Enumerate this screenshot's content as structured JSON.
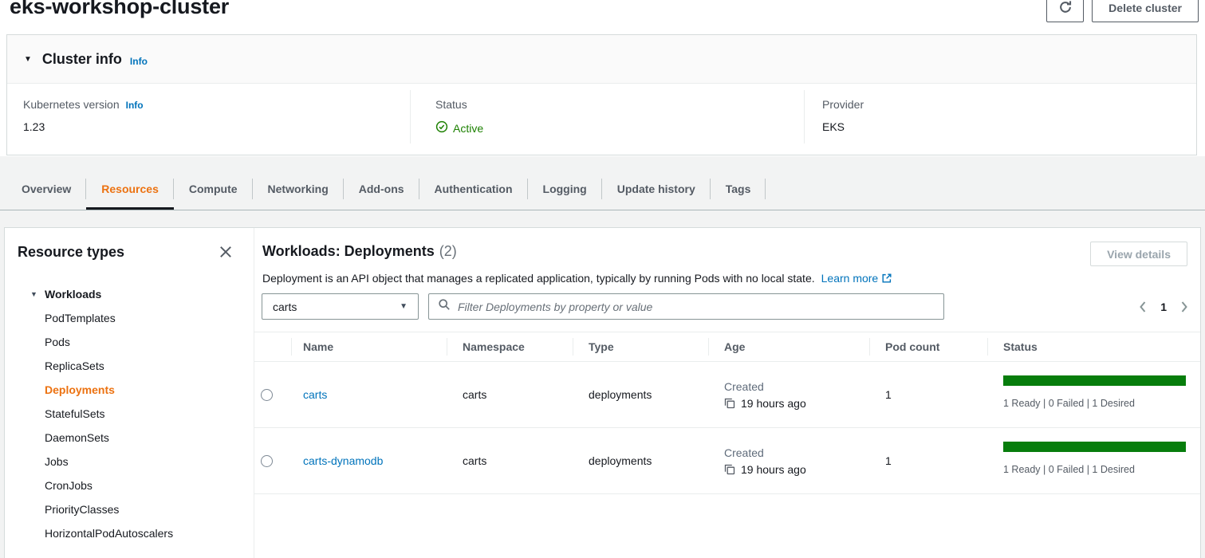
{
  "page": {
    "title": "eks-workshop-cluster"
  },
  "header": {
    "delete_button": "Delete cluster"
  },
  "cluster_info": {
    "title": "Cluster info",
    "info": "Info",
    "fields": [
      {
        "label": "Kubernetes version",
        "info": "Info",
        "value": "1.23"
      },
      {
        "label": "Status",
        "value": "Active"
      },
      {
        "label": "Provider",
        "value": "EKS"
      }
    ]
  },
  "tabs": [
    {
      "label": "Overview"
    },
    {
      "label": "Resources"
    },
    {
      "label": "Compute"
    },
    {
      "label": "Networking"
    },
    {
      "label": "Add-ons"
    },
    {
      "label": "Authentication"
    },
    {
      "label": "Logging"
    },
    {
      "label": "Update history"
    },
    {
      "label": "Tags"
    }
  ],
  "active_tab": "Resources",
  "sidebar": {
    "title": "Resource types",
    "group": "Workloads",
    "items": [
      "PodTemplates",
      "Pods",
      "ReplicaSets",
      "Deployments",
      "StatefulSets",
      "DaemonSets",
      "Jobs",
      "CronJobs",
      "PriorityClasses",
      "HorizontalPodAutoscalers"
    ],
    "selected": "Deployments"
  },
  "main": {
    "title": "Workloads: Deployments",
    "count": "(2)",
    "description": "Deployment is an API object that manages a replicated application, typically by running Pods with no local state.",
    "learn_more": "Learn more",
    "view_details": "View details",
    "filter": {
      "dropdown_value": "carts",
      "search_placeholder": "Filter Deployments by property or value"
    },
    "pagination": {
      "page": "1"
    }
  },
  "table": {
    "columns": [
      "Name",
      "Namespace",
      "Type",
      "Age",
      "Pod count",
      "Status"
    ],
    "rows": [
      {
        "name": "carts",
        "namespace": "carts",
        "type": "deployments",
        "age_label": "Created",
        "age_value": "19 hours ago",
        "pod_count": "1",
        "status_text": "1 Ready | 0 Failed | 1 Desired",
        "status_ready": 1,
        "status_failed": 0,
        "status_desired": 1
      },
      {
        "name": "carts-dynamodb",
        "namespace": "carts",
        "type": "deployments",
        "age_label": "Created",
        "age_value": "19 hours ago",
        "pod_count": "1",
        "status_text": "1 Ready | 0 Failed | 1 Desired",
        "status_ready": 1,
        "status_failed": 0,
        "status_desired": 1
      }
    ]
  },
  "colors": {
    "accent_orange": "#ec7211",
    "link_blue": "#0073bb",
    "success_green": "#1d8102",
    "status_bar_green": "#077d0c",
    "active_tab_underline": "#16191f"
  }
}
